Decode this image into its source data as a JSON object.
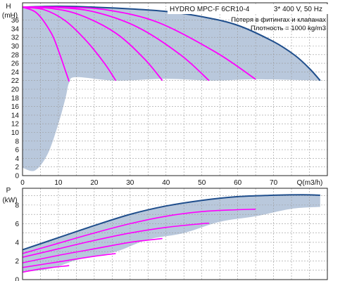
{
  "header": {
    "title": "HYDRO MPC-F 6CR10-4",
    "supply": "3* 400 V, 50 Hz",
    "note_losses": "Потеря в фитингах и клапанах",
    "note_density": "Плотность = 1000 kg/m3"
  },
  "colors": {
    "max_curve": "#1f4e8c",
    "pump_curves": "#ff00ff",
    "operating_area": "#b9c8dc",
    "grid": "#9a9a9a",
    "text": "#111111"
  },
  "chart_data": [
    {
      "type": "line",
      "panel": "head",
      "xlabel": "Q(m3/h)",
      "ylabel_top": "H",
      "ylabel_unit": "(mH)",
      "xlim": [
        0,
        85
      ],
      "ylim": [
        0,
        40
      ],
      "x_ticks": [
        0,
        10,
        20,
        30,
        40,
        50,
        60,
        70
      ],
      "y_ticks": [
        0,
        2,
        4,
        6,
        8,
        10,
        12,
        14,
        16,
        18,
        20,
        22,
        24,
        26,
        28,
        30,
        32,
        34,
        36
      ],
      "grid": true,
      "operating_area": {
        "upper": [
          [
            0,
            39.0
          ],
          [
            10,
            39.2
          ],
          [
            20,
            39.0
          ],
          [
            30,
            38.6
          ],
          [
            40,
            38.0
          ],
          [
            50,
            36.8
          ],
          [
            60,
            34.8
          ],
          [
            70,
            31.0
          ],
          [
            76,
            27.8
          ],
          [
            80,
            24.8
          ],
          [
            83,
            22.0
          ]
        ],
        "lower": [
          [
            83,
            22.0
          ],
          [
            65,
            22.3
          ],
          [
            53,
            22.0
          ],
          [
            40,
            22.4
          ],
          [
            26,
            22.0
          ],
          [
            15,
            22.8
          ],
          [
            13,
            21.5
          ],
          [
            12,
            18.0
          ],
          [
            10,
            12.0
          ],
          [
            7,
            5.0
          ],
          [
            3.5,
            1.2
          ],
          [
            0,
            1.8
          ]
        ]
      },
      "series": [
        {
          "name": "",
          "role": "max",
          "x": [
            0,
            10,
            20,
            30,
            40,
            50,
            60,
            70,
            76,
            80,
            83
          ],
          "y": [
            39.0,
            39.2,
            39.0,
            38.6,
            38.0,
            36.8,
            34.8,
            31.0,
            27.8,
            24.8,
            22.0
          ]
        },
        {
          "name": "",
          "role": "pump-1",
          "x": [
            0,
            4,
            8,
            10,
            12,
            13
          ],
          "y": [
            39.0,
            37.6,
            33.0,
            29.0,
            24.2,
            21.8
          ]
        },
        {
          "name": "",
          "role": "pump-2",
          "x": [
            0,
            6,
            12,
            18,
            23,
            26
          ],
          "y": [
            39.0,
            38.4,
            35.8,
            31.0,
            25.8,
            22.0
          ]
        },
        {
          "name": "",
          "role": "pump-3",
          "x": [
            0,
            8,
            16,
            26,
            34,
            39
          ],
          "y": [
            39.0,
            38.7,
            37.2,
            33.0,
            27.0,
            22.0
          ]
        },
        {
          "name": "",
          "role": "pump-4",
          "x": [
            0,
            10,
            20,
            32,
            44,
            52
          ],
          "y": [
            39.0,
            38.9,
            37.9,
            34.4,
            28.0,
            22.0
          ]
        },
        {
          "name": "",
          "role": "pump-5",
          "x": [
            0,
            12,
            24,
            38,
            54,
            65
          ],
          "y": [
            39.0,
            39.0,
            38.3,
            35.4,
            28.5,
            22.3
          ]
        }
      ]
    },
    {
      "type": "line",
      "panel": "power",
      "xlabel": "",
      "ylabel_top": "P",
      "ylabel_unit": "(kW)",
      "xlim": [
        0,
        85
      ],
      "ylim": [
        0,
        9.8
      ],
      "y_ticks": [
        0,
        2,
        4,
        6,
        8
      ],
      "grid": true,
      "operating_area": {
        "upper": [
          [
            0,
            3.2
          ],
          [
            10,
            4.5
          ],
          [
            20,
            5.8
          ],
          [
            30,
            7.0
          ],
          [
            40,
            7.9
          ],
          [
            50,
            8.5
          ],
          [
            60,
            8.9
          ],
          [
            70,
            9.05
          ],
          [
            78,
            9.1
          ],
          [
            83,
            9.05
          ]
        ],
        "lower": [
          [
            83,
            7.8
          ],
          [
            75,
            7.6
          ],
          [
            65,
            6.8
          ],
          [
            55,
            6.2
          ],
          [
            45,
            5.0
          ],
          [
            35,
            4.3
          ],
          [
            26,
            3.0
          ],
          [
            16,
            2.2
          ],
          [
            8,
            1.2
          ],
          [
            0,
            0.8
          ]
        ]
      },
      "series": [
        {
          "name": "",
          "role": "max",
          "x": [
            0,
            10,
            20,
            30,
            40,
            50,
            60,
            70,
            78,
            83
          ],
          "y": [
            3.2,
            4.5,
            5.8,
            7.0,
            7.9,
            8.5,
            8.9,
            9.05,
            9.1,
            9.05
          ]
        },
        {
          "name": "",
          "role": "pump-5",
          "x": [
            0,
            10,
            20,
            30,
            40,
            50,
            60,
            65
          ],
          "y": [
            2.8,
            3.9,
            5.0,
            6.0,
            6.8,
            7.3,
            7.5,
            7.55
          ]
        },
        {
          "name": "",
          "role": "pump-4",
          "x": [
            0,
            10,
            20,
            30,
            40,
            50,
            52
          ],
          "y": [
            2.4,
            3.3,
            4.2,
            5.0,
            5.6,
            6.0,
            6.05
          ]
        },
        {
          "name": "",
          "role": "pump-3",
          "x": [
            0,
            10,
            20,
            30,
            39
          ],
          "y": [
            1.8,
            2.6,
            3.3,
            4.0,
            4.4
          ]
        },
        {
          "name": "",
          "role": "pump-2",
          "x": [
            0,
            10,
            20,
            26
          ],
          "y": [
            1.3,
            1.9,
            2.5,
            2.8
          ]
        },
        {
          "name": "",
          "role": "pump-1",
          "x": [
            0,
            6,
            13
          ],
          "y": [
            0.8,
            1.2,
            1.5
          ]
        }
      ]
    }
  ]
}
